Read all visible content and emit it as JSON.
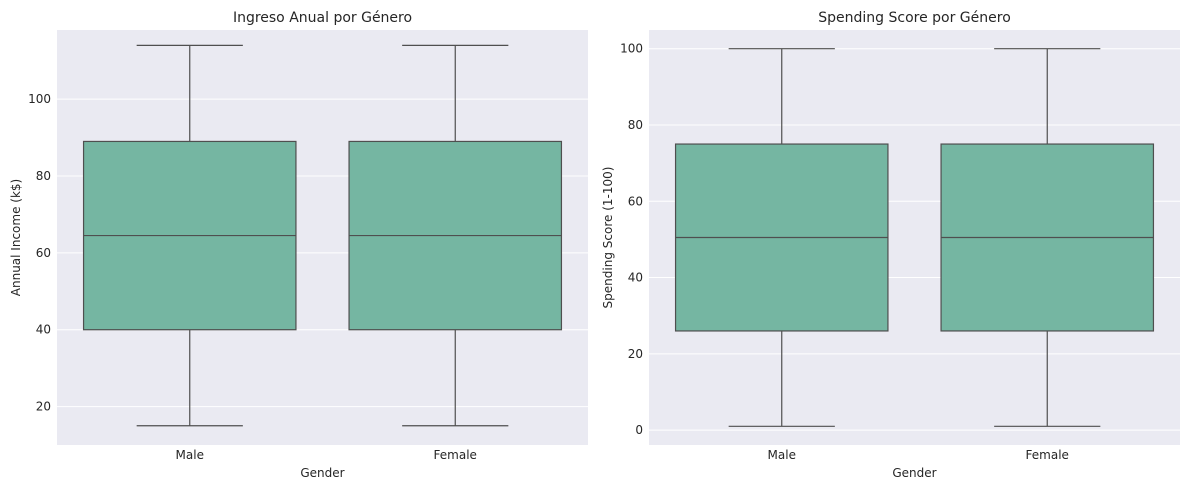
{
  "chart_data": [
    {
      "type": "box",
      "title": "Ingreso Anual por Género",
      "xlabel": "Gender",
      "ylabel": "Annual Income (k$)",
      "categories": [
        "Male",
        "Female"
      ],
      "boxes": [
        {
          "category": "Male",
          "min": 15,
          "q1": 40,
          "median": 64.5,
          "q3": 89,
          "max": 114
        },
        {
          "category": "Female",
          "min": 15,
          "q1": 40,
          "median": 64.5,
          "q3": 89,
          "max": 114
        }
      ],
      "ylim": [
        10,
        118
      ],
      "yticks": [
        20,
        40,
        60,
        80,
        100
      ],
      "grid": true,
      "box_color": "#75b6a2",
      "line_color": "#4f4f4f",
      "background": "#eaeaf2"
    },
    {
      "type": "box",
      "title": "Spending Score por Género",
      "xlabel": "Gender",
      "ylabel": "Spending Score (1-100)",
      "categories": [
        "Male",
        "Female"
      ],
      "boxes": [
        {
          "category": "Male",
          "min": 1,
          "q1": 26,
          "median": 50.5,
          "q3": 75,
          "max": 100
        },
        {
          "category": "Female",
          "min": 1,
          "q1": 26,
          "median": 50.5,
          "q3": 75,
          "max": 100
        }
      ],
      "ylim": [
        -3.9,
        104.9
      ],
      "yticks": [
        0,
        20,
        40,
        60,
        80,
        100
      ],
      "grid": true,
      "box_color": "#75b6a2",
      "line_color": "#4f4f4f",
      "background": "#eaeaf2"
    }
  ]
}
